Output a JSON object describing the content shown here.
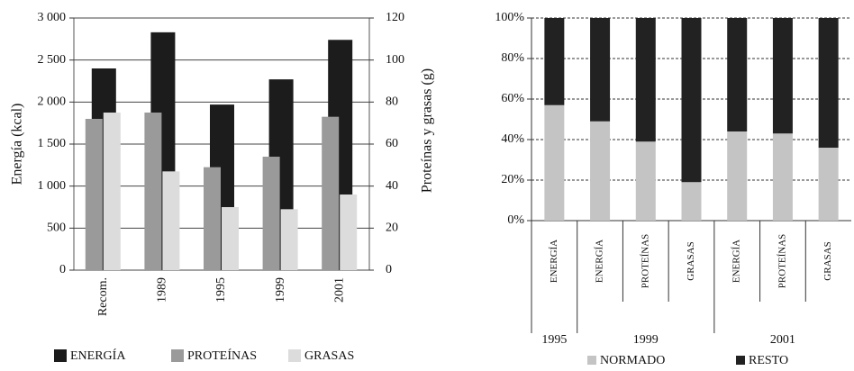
{
  "chart_data": [
    {
      "type": "bar",
      "ylabel": "Energía (kcal)",
      "y2label": "Proteínas y grasas (g)",
      "categories": [
        "Recom.",
        "1989",
        "1995",
        "1999",
        "2001"
      ],
      "series": [
        {
          "name": "ENERGÍA",
          "color": "#1c1c1c",
          "axis": "y",
          "values": [
            2400,
            2830,
            1970,
            2270,
            2740
          ]
        },
        {
          "name": "PROTEÍNAS",
          "color": "#9a9a9a",
          "axis": "y2",
          "values": [
            72,
            75,
            49,
            54,
            73
          ]
        },
        {
          "name": "GRASAS",
          "color": "#dcdcdc",
          "axis": "y2",
          "values": [
            75,
            47,
            30,
            29,
            36
          ]
        }
      ],
      "ylim": [
        0,
        3000
      ],
      "yticks": [
        0,
        500,
        {
          "value": 1000,
          "label": "1 000"
        },
        {
          "value": 1500,
          "label": "1 500"
        },
        {
          "value": 2000,
          "label": "2 000"
        },
        {
          "value": 2500,
          "label": "2 500"
        },
        {
          "value": 3000,
          "label": "3 000"
        }
      ],
      "y2lim": [
        0,
        120
      ],
      "y2ticks": [
        0,
        20,
        40,
        60,
        80,
        100,
        120
      ],
      "grid": true
    },
    {
      "type": "stacked_bar",
      "groups": [
        {
          "label": "1995",
          "categories": [
            "ENERGÍA"
          ]
        },
        {
          "label": "1999",
          "categories": [
            "ENERGÍA",
            "PROTEÍNAS",
            "GRASAS"
          ]
        },
        {
          "label": "2001",
          "categories": [
            "ENERGÍA",
            "PROTEÍNAS",
            "GRASAS"
          ]
        }
      ],
      "series": [
        {
          "name": "NORMADO",
          "color": "#c4c4c4",
          "values": [
            57,
            49,
            39,
            19,
            44,
            43,
            36
          ]
        },
        {
          "name": "RESTO",
          "color": "#222222",
          "values": [
            43,
            51,
            61,
            81,
            56,
            57,
            64
          ]
        }
      ],
      "ylim": [
        0,
        100
      ],
      "yticks": [
        {
          "value": 0,
          "label": "0%"
        },
        {
          "value": 20,
          "label": "20%"
        },
        {
          "value": 40,
          "label": "40%"
        },
        {
          "value": 60,
          "label": "60%"
        },
        {
          "value": 80,
          "label": "80%"
        },
        {
          "value": 100,
          "label": "100%"
        }
      ],
      "grid": true
    }
  ]
}
